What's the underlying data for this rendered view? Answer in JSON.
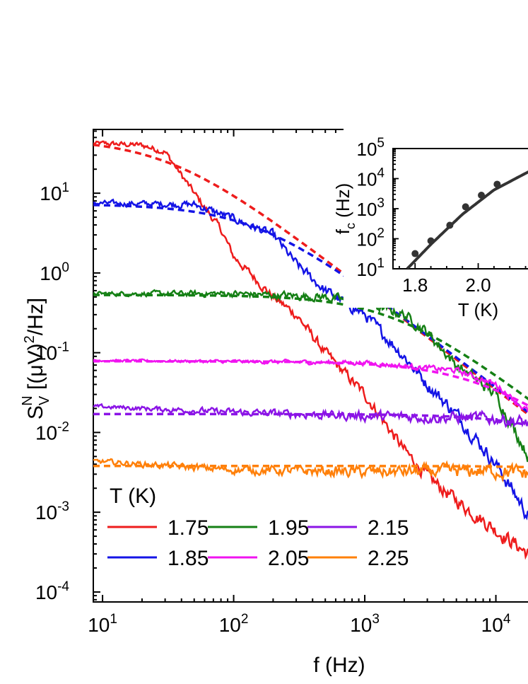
{
  "chart_data": [
    {
      "type": "line",
      "title": "",
      "xlabel": "f (Hz)",
      "ylabel_parts": {
        "s": "S",
        "sub": "V",
        "sup": "N",
        "mid": " [(μV)",
        "pow": "2",
        "tail": "/Hz]"
      },
      "xscale": "log",
      "yscale": "log",
      "xlim": [
        8.5,
        17800
      ],
      "ylim": [
        7.5e-05,
        63
      ],
      "xticks": [
        {
          "base": "10",
          "exp": "1",
          "value": 10
        },
        {
          "base": "10",
          "exp": "2",
          "value": 100
        },
        {
          "base": "10",
          "exp": "3",
          "value": 1000
        },
        {
          "base": "10",
          "exp": "4",
          "value": 10000
        }
      ],
      "yticks": [
        {
          "base": "10",
          "exp": "1",
          "value": 10
        },
        {
          "base": "10",
          "exp": "0",
          "value": 1
        },
        {
          "base": "10",
          "exp": "-1",
          "value": 0.1
        },
        {
          "base": "10",
          "exp": "-2",
          "value": 0.01
        },
        {
          "base": "10",
          "exp": "-3",
          "value": 0.001
        },
        {
          "base": "10",
          "exp": "-4",
          "value": 0.0001
        }
      ],
      "legend_title": "T (K)",
      "legend_position": "bottom-left",
      "series": [
        {
          "name": "1.75",
          "color": "#ee1c1c",
          "plateau": 42,
          "fc": 40,
          "fit_plateau": 48,
          "fit_fc": 32,
          "fit_slope": 1.05,
          "noise": 0.12,
          "points": [
            [
              10,
              42
            ],
            [
              20,
              40
            ],
            [
              30,
              33
            ],
            [
              50,
              10
            ],
            [
              80,
              3.5
            ],
            [
              100,
              1.6
            ],
            [
              200,
              0.5
            ],
            [
              300,
              0.3
            ],
            [
              500,
              0.1
            ],
            [
              1000,
              0.03
            ],
            [
              2000,
              0.006
            ],
            [
              3000,
              0.0028
            ],
            [
              5000,
              0.0014
            ],
            [
              10000,
              0.0006
            ],
            [
              17800,
              0.0003
            ]
          ]
        },
        {
          "name": "1.85",
          "color": "#1414e6",
          "plateau": 7.5,
          "fc": 200,
          "fit_plateau": 7.3,
          "fit_fc": 150,
          "fit_slope": 1.05,
          "noise": 0.12,
          "points": [
            [
              10,
              7.5
            ],
            [
              50,
              7.2
            ],
            [
              100,
              4.8
            ],
            [
              200,
              3.0
            ],
            [
              300,
              1.3
            ],
            [
              500,
              0.6
            ],
            [
              1000,
              0.3
            ],
            [
              2000,
              0.09
            ],
            [
              3000,
              0.04
            ],
            [
              5000,
              0.017
            ],
            [
              10000,
              0.004
            ],
            [
              17800,
              0.0009
            ]
          ]
        },
        {
          "name": "1.95",
          "color": "#158015",
          "plateau": 0.55,
          "fc": 1200,
          "fit_plateau": 0.53,
          "fit_fc": 1700,
          "fit_slope": 1.05,
          "noise": 0.1,
          "points": [
            [
              10,
              0.55
            ],
            [
              100,
              0.55
            ],
            [
              500,
              0.5
            ],
            [
              1000,
              0.42
            ],
            [
              2000,
              0.3
            ],
            [
              3000,
              0.18
            ],
            [
              5000,
              0.07
            ],
            [
              10000,
              0.03
            ],
            [
              17800,
              0.005
            ]
          ]
        },
        {
          "name": "2.05",
          "color": "#f014f0",
          "plateau": 0.08,
          "fc": 7000,
          "fit_plateau": 0.078,
          "fit_fc": 8000,
          "fit_slope": 1.0,
          "noise": 0.05,
          "points": [
            [
              10,
              0.08
            ],
            [
              1000,
              0.075
            ],
            [
              5000,
              0.06
            ],
            [
              10000,
              0.04
            ],
            [
              17800,
              0.018
            ]
          ]
        },
        {
          "name": "2.15",
          "color": "#8b14e6",
          "plateau": 0.017,
          "fc": 30000,
          "fit_plateau": 0.017,
          "fit_fc": 40000,
          "fit_slope": 1.0,
          "noise": 0.1,
          "points": [
            [
              10,
              0.021
            ],
            [
              100,
              0.018
            ],
            [
              1000,
              0.016
            ],
            [
              10000,
              0.015
            ],
            [
              17800,
              0.013
            ]
          ]
        },
        {
          "name": "2.25",
          "color": "#ff800a",
          "plateau": 0.0034,
          "fc": 200000,
          "fit_plateau": 0.0038,
          "fit_fc": 300000,
          "fit_slope": 1.0,
          "noise": 0.12,
          "points": [
            [
              10,
              0.0043
            ],
            [
              100,
              0.0034
            ],
            [
              1000,
              0.0032
            ],
            [
              10000,
              0.0033
            ],
            [
              17800,
              0.003
            ]
          ]
        }
      ]
    },
    {
      "type": "scatter",
      "title": "",
      "xlabel": "T (K)",
      "ylabel_parts": {
        "f": "f",
        "sub": "c",
        "tail": " (Hz)"
      },
      "yscale": "log",
      "xlim": [
        1.73,
        2.16
      ],
      "ylim": [
        10,
        100000
      ],
      "xticks": [
        "1.8",
        "2.0"
      ],
      "yticks": [
        {
          "base": "10",
          "exp": "5",
          "value": 100000
        },
        {
          "base": "10",
          "exp": "4",
          "value": 10000
        },
        {
          "base": "10",
          "exp": "3",
          "value": 1000
        },
        {
          "base": "10",
          "exp": "2",
          "value": 100
        },
        {
          "base": "10",
          "exp": "1",
          "value": 10
        }
      ],
      "points": [
        {
          "x": 1.8,
          "y": 32
        },
        {
          "x": 1.85,
          "y": 85
        },
        {
          "x": 1.91,
          "y": 280
        },
        {
          "x": 1.96,
          "y": 1150
        },
        {
          "x": 2.01,
          "y": 2800
        },
        {
          "x": 2.06,
          "y": 6500
        }
      ],
      "fit": {
        "x": [
          1.775,
          1.85,
          1.95,
          2.05,
          2.16
        ],
        "y": [
          10,
          65,
          650,
          4200,
          17000
        ]
      }
    }
  ]
}
